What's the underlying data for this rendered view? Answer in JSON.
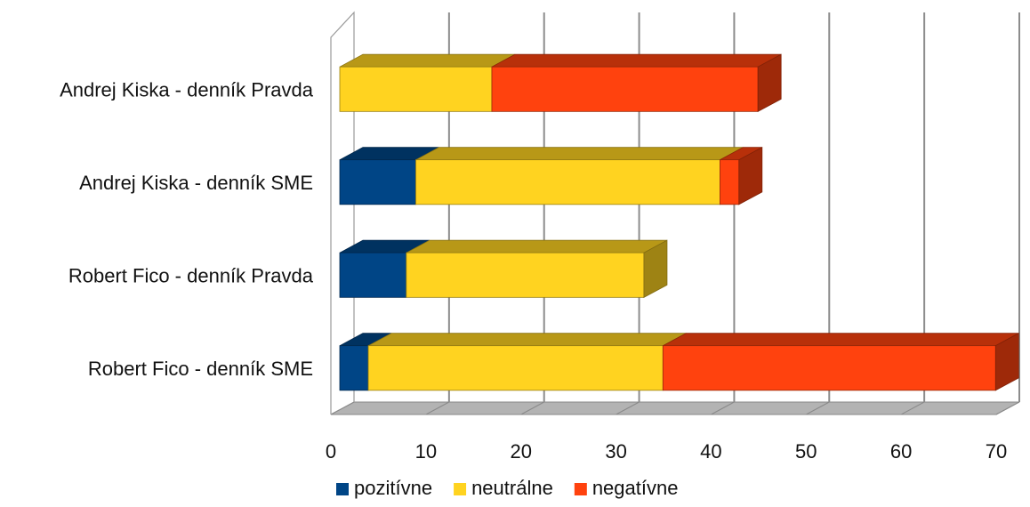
{
  "chart_data": {
    "type": "bar",
    "orientation": "horizontal",
    "stacked": true,
    "three_d": true,
    "categories": [
      "Andrej Kiska - denník Pravda",
      "Andrej Kiska - denník SME",
      "Robert Fico - denník Pravda",
      "Robert Fico - denník SME"
    ],
    "series": [
      {
        "name": "pozitívne",
        "color": "#004586",
        "values": [
          0,
          8,
          7,
          3
        ]
      },
      {
        "name": "neutrálne",
        "color": "#ffd320",
        "values": [
          16,
          32,
          25,
          31
        ]
      },
      {
        "name": "negatívne",
        "color": "#ff420e",
        "values": [
          28,
          2,
          0,
          35
        ]
      }
    ],
    "xlim": [
      0,
      70
    ],
    "xticks": [
      "0",
      "10",
      "20",
      "30",
      "40",
      "50",
      "60",
      "70"
    ],
    "grid": true,
    "legend_position": "bottom"
  }
}
